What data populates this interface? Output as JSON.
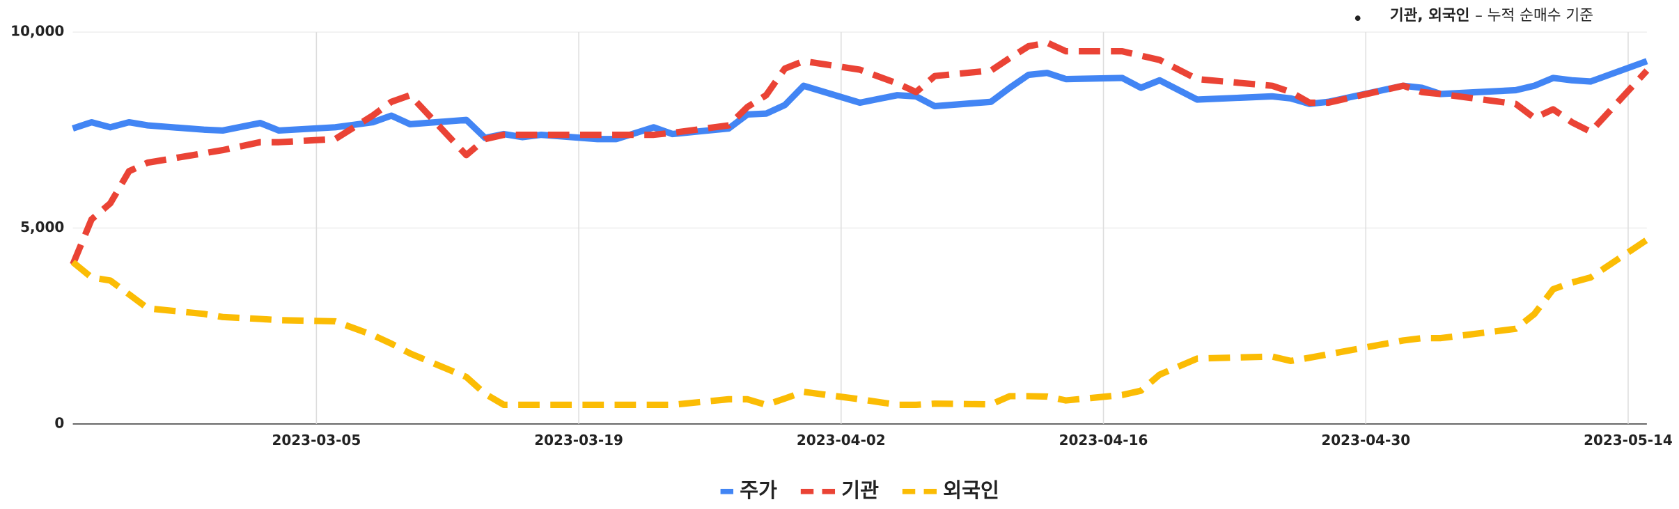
{
  "chart_data": {
    "type": "line",
    "annotation": {
      "bold": "기관, 외국인",
      "text": "– 누적 순매수 기준"
    },
    "x": [
      "2023-02-20",
      "2023-02-21",
      "2023-02-22",
      "2023-02-23",
      "2023-02-24",
      "2023-02-27",
      "2023-02-28",
      "2023-03-02",
      "2023-03-03",
      "2023-03-06",
      "2023-03-08",
      "2023-03-09",
      "2023-03-10",
      "2023-03-13",
      "2023-03-14",
      "2023-03-15",
      "2023-03-16",
      "2023-03-17",
      "2023-03-20",
      "2023-03-21",
      "2023-03-23",
      "2023-03-24",
      "2023-03-27",
      "2023-03-28",
      "2023-03-29",
      "2023-03-30",
      "2023-03-31",
      "2023-04-03",
      "2023-04-05",
      "2023-04-06",
      "2023-04-07",
      "2023-04-10",
      "2023-04-11",
      "2023-04-12",
      "2023-04-13",
      "2023-04-14",
      "2023-04-17",
      "2023-04-18",
      "2023-04-19",
      "2023-04-21",
      "2023-04-25",
      "2023-04-26",
      "2023-04-27",
      "2023-04-28",
      "2023-05-02",
      "2023-05-03",
      "2023-05-04",
      "2023-05-08",
      "2023-05-09",
      "2023-05-10",
      "2023-05-11",
      "2023-05-12",
      "2023-05-15"
    ],
    "series": [
      {
        "name": "주가",
        "color": "#4285f4",
        "dashed": false,
        "values": [
          7540,
          7700,
          7570,
          7700,
          7620,
          7510,
          7490,
          7680,
          7490,
          7570,
          7700,
          7870,
          7650,
          7760,
          7300,
          7400,
          7320,
          7380,
          7270,
          7270,
          7570,
          7400,
          7540,
          7900,
          7920,
          8140,
          8630,
          8200,
          8390,
          8360,
          8110,
          8220,
          8580,
          8910,
          8960,
          8800,
          8830,
          8580,
          8770,
          8280,
          8360,
          8310,
          8170,
          8220,
          8630,
          8580,
          8420,
          8520,
          8630,
          8830,
          8770,
          8740,
          9260
        ]
      },
      {
        "name": "기관",
        "color": "#ea4335",
        "dashed": true,
        "values": [
          4070,
          5220,
          5630,
          6450,
          6670,
          6910,
          6990,
          7190,
          7190,
          7270,
          7870,
          8220,
          8390,
          6860,
          7270,
          7380,
          7380,
          7380,
          7380,
          7380,
          7380,
          7430,
          7620,
          8090,
          8390,
          9070,
          9260,
          9040,
          8690,
          8470,
          8880,
          9020,
          9340,
          9640,
          9730,
          9510,
          9510,
          9400,
          9290,
          8800,
          8630,
          8470,
          8200,
          8200,
          8630,
          8470,
          8420,
          8170,
          7810,
          8030,
          7700,
          7460,
          9020
        ]
      },
      {
        "name": "외국인",
        "color": "#fbbc04",
        "dashed": true,
        "values": [
          4130,
          3740,
          3660,
          3310,
          2950,
          2810,
          2730,
          2680,
          2650,
          2620,
          2270,
          2050,
          1800,
          1200,
          770,
          490,
          490,
          490,
          490,
          490,
          490,
          490,
          630,
          630,
          490,
          650,
          820,
          630,
          490,
          490,
          520,
          500,
          710,
          710,
          700,
          600,
          740,
          850,
          1260,
          1670,
          1720,
          1610,
          1690,
          1780,
          2130,
          2190,
          2190,
          2430,
          2810,
          3440,
          3610,
          3740,
          4700
        ]
      }
    ],
    "xlim": [
      "2023-02-20",
      "2023-05-15"
    ],
    "xticks": [
      "2023-03-05",
      "2023-03-19",
      "2023-04-02",
      "2023-04-16",
      "2023-04-30",
      "2023-05-14"
    ],
    "ylim": [
      0,
      10000
    ],
    "yticks": [
      0,
      {
        "value": 5000,
        "label": "5,000"
      },
      {
        "value": 10000,
        "label": "10,000"
      }
    ],
    "grid": true,
    "legend": "bottom"
  }
}
